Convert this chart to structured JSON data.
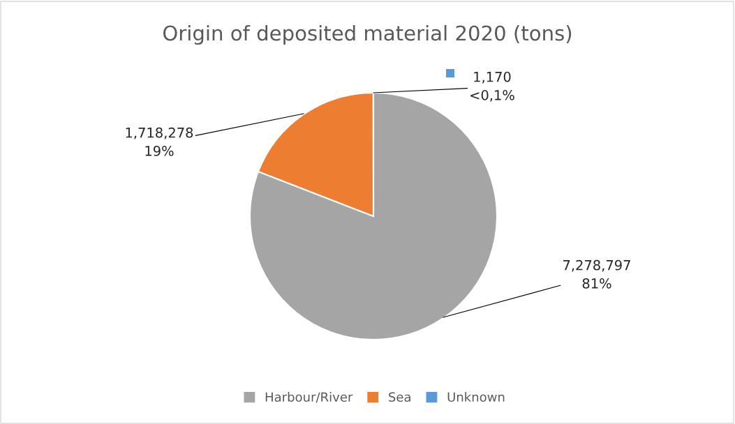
{
  "chart_data": {
    "type": "pie",
    "title": "Origin of deposited material 2020 (tons)",
    "categories": [
      "Harbour/River",
      "Sea",
      "Unknown"
    ],
    "values": [
      7278797,
      1718278,
      1170
    ],
    "colors": [
      "#a5a5a5",
      "#ed7d31",
      "#5b9bd5"
    ],
    "value_labels": [
      "7,278,797\n81%",
      "1,718,278\n19%",
      "1,170\n<0,1%"
    ],
    "legend": "bottom"
  }
}
